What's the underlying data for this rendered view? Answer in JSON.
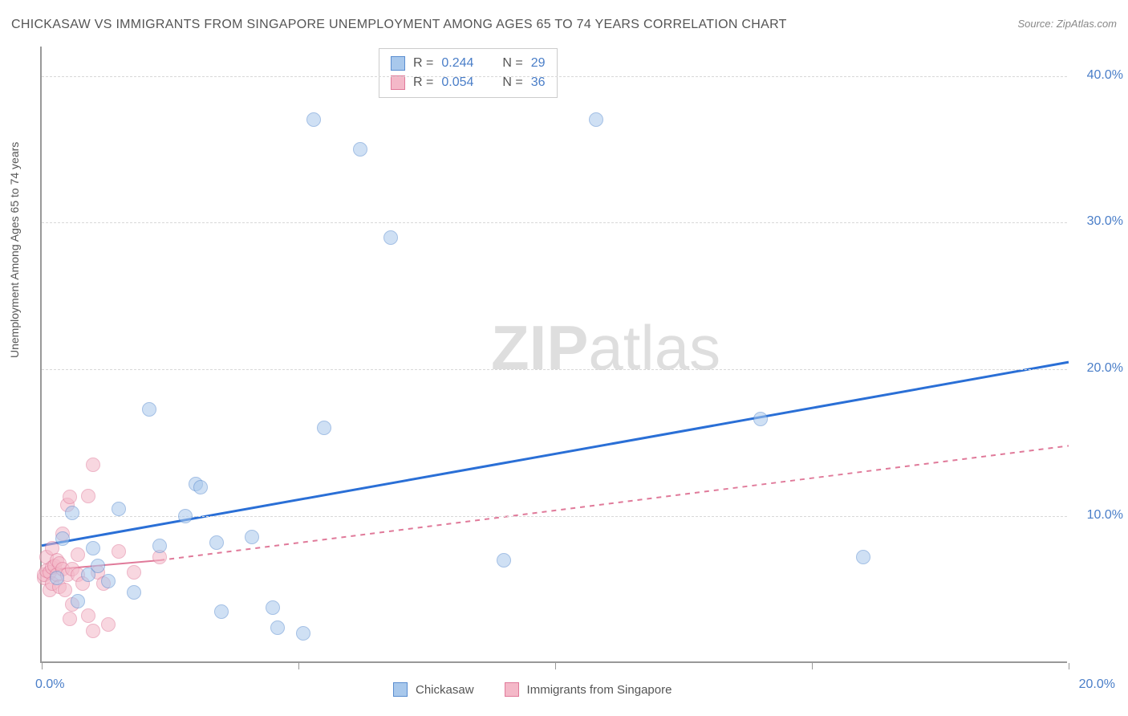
{
  "title": "CHICKASAW VS IMMIGRANTS FROM SINGAPORE UNEMPLOYMENT AMONG AGES 65 TO 74 YEARS CORRELATION CHART",
  "source": "Source: ZipAtlas.com",
  "ylabel": "Unemployment Among Ages 65 to 74 years",
  "watermark_bold": "ZIP",
  "watermark_thin": "atlas",
  "chart": {
    "type": "scatter",
    "background_color": "#ffffff",
    "grid_color": "#d8d8d8",
    "axis_color": "#999999",
    "xlim": [
      0,
      20
    ],
    "ylim": [
      0,
      42
    ],
    "y_ticks": [
      10,
      20,
      30,
      40
    ],
    "y_tick_labels": [
      "10.0%",
      "20.0%",
      "30.0%",
      "40.0%"
    ],
    "y_tick_color": "#4a7ec8",
    "x_ticks": [
      0,
      5,
      10,
      15,
      20
    ],
    "x_origin_label": "0.0%",
    "x_origin_color": "#4a7ec8",
    "x_max_label": "20.0%",
    "x_max_color": "#4a7ec8",
    "label_fontsize": 14,
    "tick_fontsize": 16
  },
  "series": {
    "a": {
      "label": "Chickasaw",
      "color_fill": "#a8c8ec",
      "color_stroke": "#5a8dd0",
      "fill_opacity": 0.55,
      "marker_radius": 9,
      "R": "0.244",
      "N": "29",
      "trend": {
        "color": "#2a6fd6",
        "width": 3,
        "dashed_extension": false,
        "x1": 0,
        "y1": 8.0,
        "x2": 20,
        "y2": 20.5
      },
      "points": [
        [
          0.3,
          5.8
        ],
        [
          0.9,
          6.0
        ],
        [
          0.7,
          4.2
        ],
        [
          1.3,
          5.6
        ],
        [
          1.0,
          7.8
        ],
        [
          1.8,
          4.8
        ],
        [
          0.6,
          10.2
        ],
        [
          2.1,
          17.3
        ],
        [
          3.0,
          12.2
        ],
        [
          3.1,
          12.0
        ],
        [
          2.8,
          10.0
        ],
        [
          1.5,
          10.5
        ],
        [
          3.4,
          8.2
        ],
        [
          4.1,
          8.6
        ],
        [
          3.5,
          3.5
        ],
        [
          4.6,
          2.4
        ],
        [
          5.1,
          2.0
        ],
        [
          5.5,
          16.0
        ],
        [
          5.3,
          37.0
        ],
        [
          6.2,
          35.0
        ],
        [
          6.8,
          29.0
        ],
        [
          9.0,
          7.0
        ],
        [
          10.8,
          37.0
        ],
        [
          14.0,
          16.6
        ],
        [
          16.0,
          7.2
        ],
        [
          4.5,
          3.8
        ],
        [
          2.3,
          8.0
        ],
        [
          0.4,
          8.5
        ],
        [
          1.1,
          6.6
        ]
      ]
    },
    "b": {
      "label": "Immigrants from Singapore",
      "color_fill": "#f4b8c8",
      "color_stroke": "#e07a9a",
      "fill_opacity": 0.55,
      "marker_radius": 9,
      "R": "0.054",
      "N": "36",
      "trend": {
        "color": "#e07a9a",
        "width": 2,
        "dashed_extension": true,
        "solid_x1": 0,
        "solid_y1": 6.3,
        "solid_x2": 2.3,
        "solid_y2": 7.0,
        "dash_x2": 20,
        "dash_y2": 14.8
      },
      "points": [
        [
          0.05,
          5.8
        ],
        [
          0.05,
          6.0
        ],
        [
          0.1,
          6.3
        ],
        [
          0.1,
          7.2
        ],
        [
          0.15,
          5.0
        ],
        [
          0.15,
          6.2
        ],
        [
          0.2,
          6.5
        ],
        [
          0.2,
          7.8
        ],
        [
          0.2,
          5.4
        ],
        [
          0.25,
          6.6
        ],
        [
          0.3,
          6.0
        ],
        [
          0.3,
          7.0
        ],
        [
          0.35,
          5.2
        ],
        [
          0.35,
          6.8
        ],
        [
          0.4,
          6.4
        ],
        [
          0.4,
          8.8
        ],
        [
          0.45,
          5.0
        ],
        [
          0.5,
          6.0
        ],
        [
          0.5,
          10.8
        ],
        [
          0.55,
          11.3
        ],
        [
          0.55,
          3.0
        ],
        [
          0.6,
          4.0
        ],
        [
          0.6,
          6.4
        ],
        [
          0.7,
          6.0
        ],
        [
          0.7,
          7.4
        ],
        [
          0.8,
          5.4
        ],
        [
          0.9,
          3.2
        ],
        [
          0.9,
          11.4
        ],
        [
          1.0,
          13.5
        ],
        [
          1.0,
          2.2
        ],
        [
          1.1,
          6.2
        ],
        [
          1.2,
          5.4
        ],
        [
          1.3,
          2.6
        ],
        [
          1.5,
          7.6
        ],
        [
          1.8,
          6.2
        ],
        [
          2.3,
          7.2
        ]
      ]
    }
  },
  "legend_top": {
    "r_label": "R =",
    "n_label": "N =",
    "value_color": "#4a7ec8"
  },
  "legend_bottom": {
    "a_label": "Chickasaw",
    "b_label": "Immigrants from Singapore"
  }
}
